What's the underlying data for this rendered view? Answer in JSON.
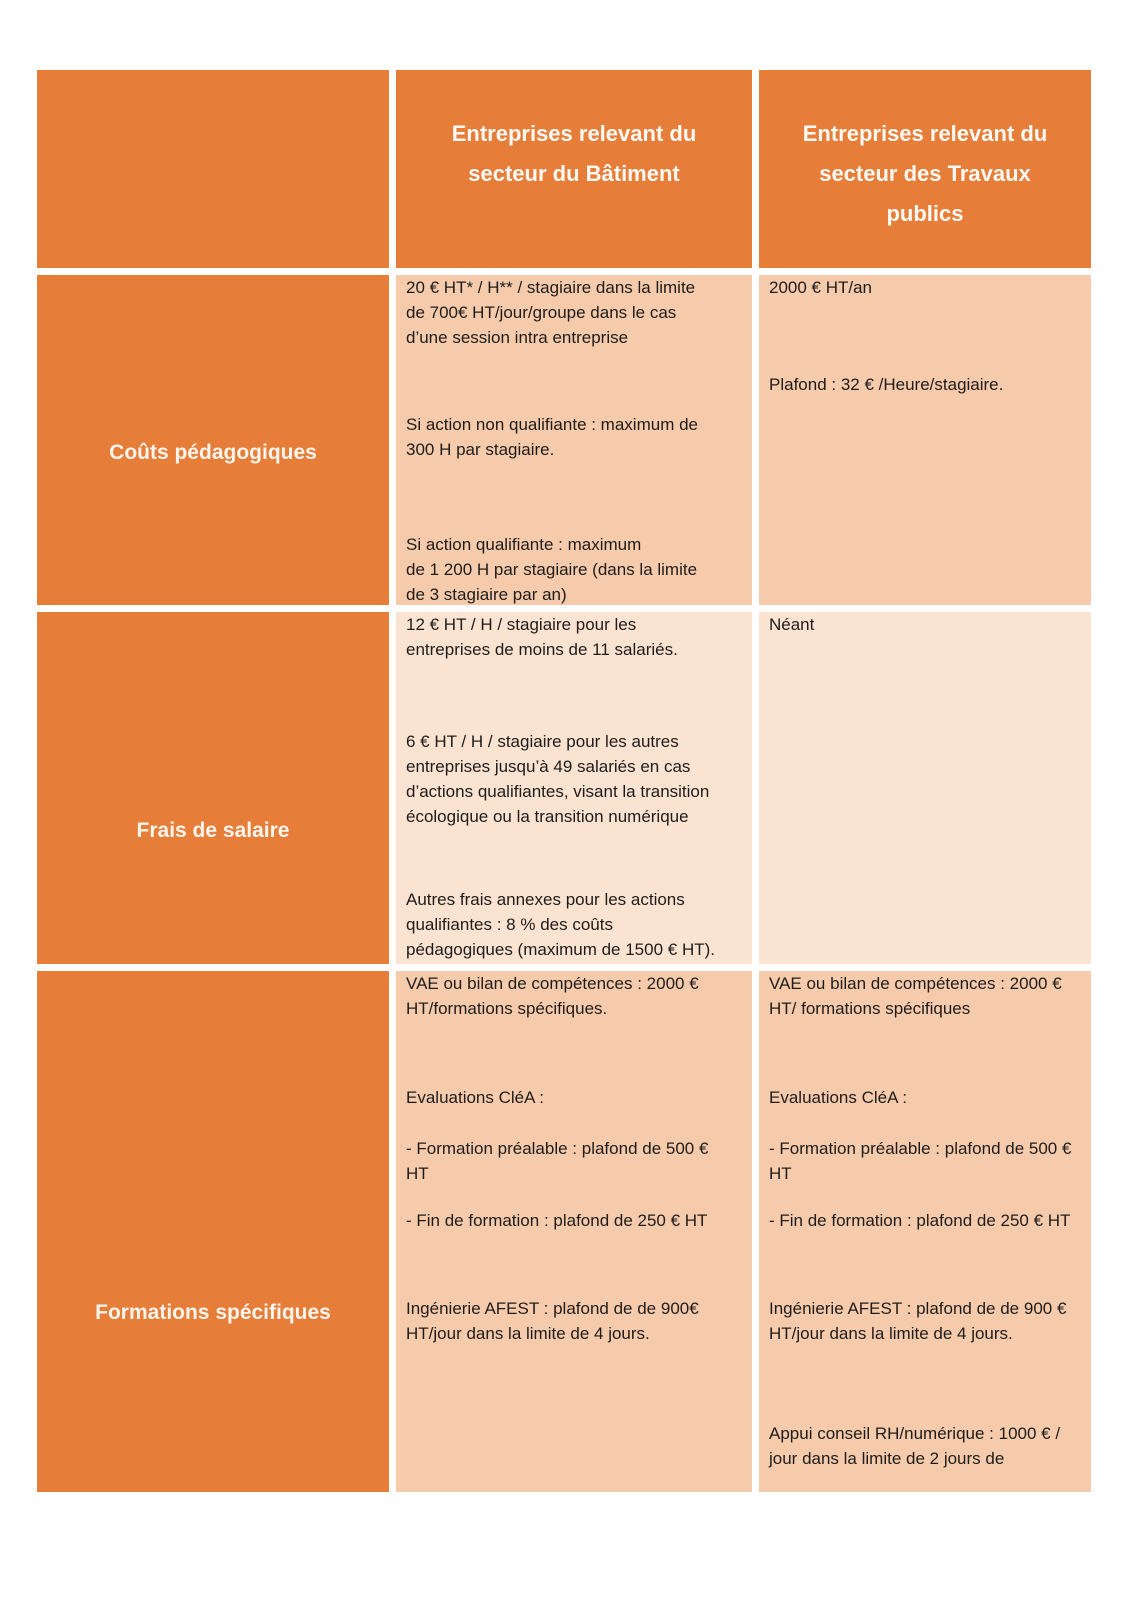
{
  "colors": {
    "header_orange": "#E67E3A",
    "row_band_dark": "#F6CBAC",
    "row_band_light": "#FBE3D2",
    "header_text": "#FDFAF5",
    "body_text": "#1E1C1A",
    "grid_gap": "#FFFFFF"
  },
  "table": {
    "header": {
      "batiment": "Entreprises relevant du\nsecteur du Bâtiment",
      "travaux": "Entreprises relevant du\nsecteur des Travaux\npublics"
    },
    "rows": [
      {
        "label": "Coûts pédagogiques",
        "batiment": [
          "20 € HT* / H** / stagiaire dans la limite\nde 700€ HT/jour/groupe dans le cas\nd’une session intra entreprise",
          "Si action non qualifiante : maximum de\n300 H par stagiaire.",
          "Si action qualifiante : maximum\nde  1 200 H par stagiaire (dans la limite\nde 3 stagiaire par an)"
        ],
        "travaux": [
          "2000 € HT/an",
          "Plafond : 32 € /Heure/stagiaire."
        ]
      },
      {
        "label": "Frais de salaire",
        "batiment": [
          "12 € HT / H / stagiaire pour les\nentreprises de moins de 11 salariés.",
          "6 € HT / H / stagiaire pour les autres\nentreprises jusqu’à 49 salariés en cas\nd’actions qualifiantes, visant la transition\nécologique ou la transition numérique",
          "Autres frais annexes pour les actions\nqualifiantes : 8 % des coûts\npédagogiques (maximum de 1500 € HT)."
        ],
        "travaux": [
          "Néant"
        ]
      },
      {
        "label": "Formations spécifiques",
        "batiment": [
          "VAE ou bilan de compétences : 2000 €\nHT/formations spécifiques.",
          "Evaluations CléA :",
          "- Formation préalable : plafond de 500 €\nHT",
          "- Fin de formation : plafond  de 250 € HT",
          "Ingénierie AFEST : plafond de de 900€\nHT/jour dans la limite de 4 jours."
        ],
        "travaux": [
          "VAE ou bilan de compétences : 2000 €\nHT/ formations spécifiques",
          "Evaluations CléA :",
          "- Formation préalable : plafond de 500 €\nHT",
          "- Fin de formation : plafond  de 250 € HT",
          "Ingénierie AFEST : plafond de de 900 €\nHT/jour dans la limite de 4 jours.",
          "Appui conseil RH/numérique : 1000 € /\njour dans la limite de 2 jours de"
        ]
      }
    ]
  }
}
